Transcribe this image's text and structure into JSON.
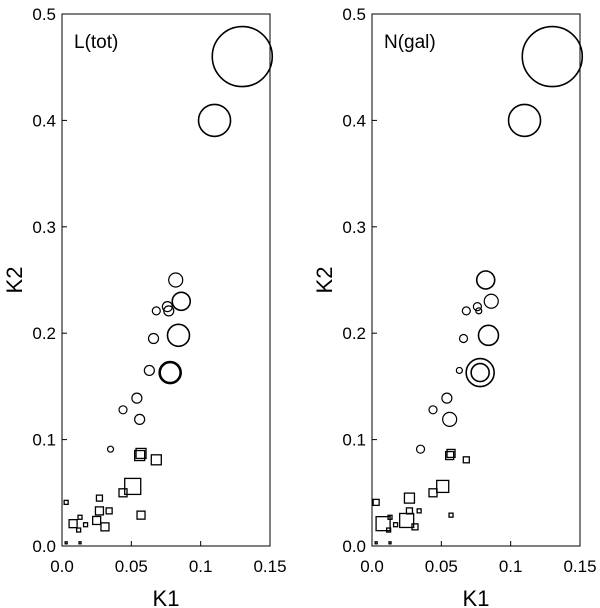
{
  "chart_data": [
    {
      "type": "scatter",
      "title": "L(tot)",
      "xlabel": "K1",
      "ylabel": "K2",
      "xlim": [
        0,
        0.15
      ],
      "ylim": [
        0,
        0.5
      ],
      "xticks": [
        "0.0",
        "0.05",
        "0.1",
        "0.15"
      ],
      "yticks": [
        "0.0",
        "0.1",
        "0.2",
        "0.3",
        "0.4",
        "0.5"
      ],
      "grid": false,
      "marker_size_meaning": "symbol size scales with L(tot)",
      "circles": [
        {
          "x": 0.13,
          "y": 0.46,
          "size": 30
        },
        {
          "x": 0.11,
          "y": 0.4,
          "size": 16
        },
        {
          "x": 0.082,
          "y": 0.25,
          "size": 7
        },
        {
          "x": 0.086,
          "y": 0.23,
          "size": 9
        },
        {
          "x": 0.076,
          "y": 0.225,
          "size": 5
        },
        {
          "x": 0.077,
          "y": 0.221,
          "size": 5
        },
        {
          "x": 0.068,
          "y": 0.221,
          "size": 4
        },
        {
          "x": 0.084,
          "y": 0.198,
          "size": 11
        },
        {
          "x": 0.066,
          "y": 0.195,
          "size": 5
        },
        {
          "x": 0.078,
          "y": 0.163,
          "size": 11
        },
        {
          "x": 0.078,
          "y": 0.163,
          "size": 10
        },
        {
          "x": 0.063,
          "y": 0.165,
          "size": 5
        },
        {
          "x": 0.054,
          "y": 0.139,
          "size": 5
        },
        {
          "x": 0.044,
          "y": 0.128,
          "size": 4
        },
        {
          "x": 0.056,
          "y": 0.119,
          "size": 5
        },
        {
          "x": 0.035,
          "y": 0.091,
          "size": 3
        }
      ],
      "squares": [
        {
          "x": 0.057,
          "y": 0.087,
          "size": 5
        },
        {
          "x": 0.056,
          "y": 0.085,
          "size": 5
        },
        {
          "x": 0.068,
          "y": 0.081,
          "size": 5
        },
        {
          "x": 0.051,
          "y": 0.056,
          "size": 8
        },
        {
          "x": 0.044,
          "y": 0.05,
          "size": 4
        },
        {
          "x": 0.027,
          "y": 0.045,
          "size": 3
        },
        {
          "x": 0.003,
          "y": 0.041,
          "size": 2
        },
        {
          "x": 0.027,
          "y": 0.033,
          "size": 4
        },
        {
          "x": 0.034,
          "y": 0.033,
          "size": 3
        },
        {
          "x": 0.057,
          "y": 0.029,
          "size": 4
        },
        {
          "x": 0.013,
          "y": 0.027,
          "size": 2
        },
        {
          "x": 0.025,
          "y": 0.024,
          "size": 4
        },
        {
          "x": 0.008,
          "y": 0.021,
          "size": 4
        },
        {
          "x": 0.017,
          "y": 0.02,
          "size": 2
        },
        {
          "x": 0.031,
          "y": 0.018,
          "size": 4
        },
        {
          "x": 0.012,
          "y": 0.015,
          "size": 2
        },
        {
          "x": 0.003,
          "y": 0.003,
          "size": 1
        },
        {
          "x": 0.013,
          "y": 0.003,
          "size": 1
        }
      ]
    },
    {
      "type": "scatter",
      "title": "N(gal)",
      "xlabel": "K1",
      "ylabel": "K2",
      "xlim": [
        0,
        0.15
      ],
      "ylim": [
        0,
        0.5
      ],
      "xticks": [
        "0.0",
        "0.05",
        "0.1",
        "0.15"
      ],
      "yticks": [
        "0.0",
        "0.1",
        "0.2",
        "0.3",
        "0.4",
        "0.5"
      ],
      "grid": false,
      "marker_size_meaning": "symbol size scales with N(gal)",
      "circles": [
        {
          "x": 0.13,
          "y": 0.46,
          "size": 30
        },
        {
          "x": 0.11,
          "y": 0.4,
          "size": 16
        },
        {
          "x": 0.082,
          "y": 0.25,
          "size": 9
        },
        {
          "x": 0.086,
          "y": 0.23,
          "size": 7
        },
        {
          "x": 0.076,
          "y": 0.225,
          "size": 4
        },
        {
          "x": 0.077,
          "y": 0.221,
          "size": 3
        },
        {
          "x": 0.068,
          "y": 0.221,
          "size": 4
        },
        {
          "x": 0.084,
          "y": 0.198,
          "size": 10
        },
        {
          "x": 0.066,
          "y": 0.195,
          "size": 4
        },
        {
          "x": 0.078,
          "y": 0.163,
          "size": 14
        },
        {
          "x": 0.078,
          "y": 0.163,
          "size": 9
        },
        {
          "x": 0.063,
          "y": 0.165,
          "size": 3
        },
        {
          "x": 0.054,
          "y": 0.139,
          "size": 5
        },
        {
          "x": 0.044,
          "y": 0.128,
          "size": 4
        },
        {
          "x": 0.056,
          "y": 0.119,
          "size": 7
        },
        {
          "x": 0.035,
          "y": 0.091,
          "size": 4
        }
      ],
      "squares": [
        {
          "x": 0.057,
          "y": 0.087,
          "size": 4
        },
        {
          "x": 0.056,
          "y": 0.085,
          "size": 4
        },
        {
          "x": 0.068,
          "y": 0.081,
          "size": 3
        },
        {
          "x": 0.051,
          "y": 0.056,
          "size": 6
        },
        {
          "x": 0.044,
          "y": 0.05,
          "size": 4
        },
        {
          "x": 0.027,
          "y": 0.045,
          "size": 5
        },
        {
          "x": 0.003,
          "y": 0.041,
          "size": 3
        },
        {
          "x": 0.027,
          "y": 0.033,
          "size": 3
        },
        {
          "x": 0.034,
          "y": 0.033,
          "size": 2
        },
        {
          "x": 0.057,
          "y": 0.029,
          "size": 2
        },
        {
          "x": 0.013,
          "y": 0.027,
          "size": 2
        },
        {
          "x": 0.025,
          "y": 0.024,
          "size": 7
        },
        {
          "x": 0.008,
          "y": 0.021,
          "size": 7
        },
        {
          "x": 0.017,
          "y": 0.02,
          "size": 2
        },
        {
          "x": 0.031,
          "y": 0.018,
          "size": 3
        },
        {
          "x": 0.012,
          "y": 0.015,
          "size": 2
        },
        {
          "x": 0.003,
          "y": 0.003,
          "size": 1
        },
        {
          "x": 0.013,
          "y": 0.003,
          "size": 1
        }
      ]
    }
  ]
}
